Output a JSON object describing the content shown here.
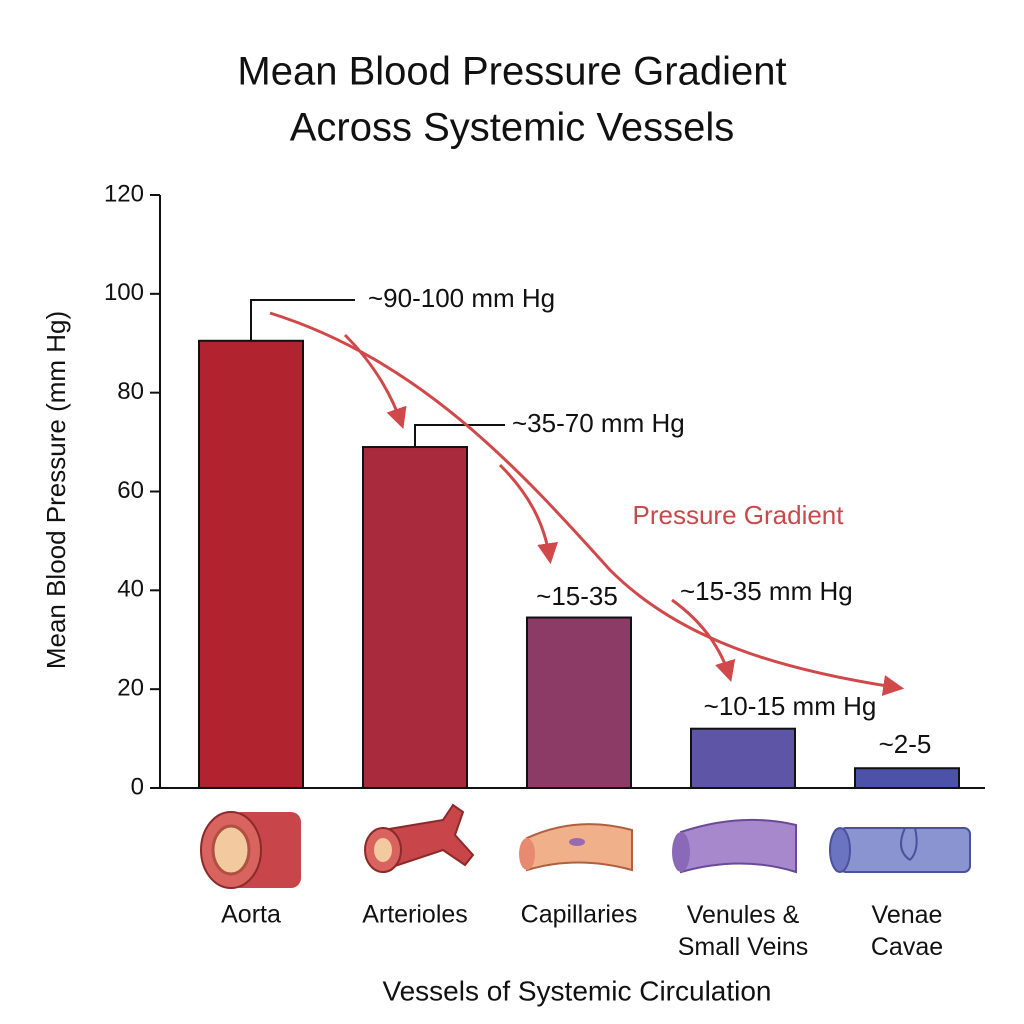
{
  "chart_data": {
    "type": "bar",
    "title": [
      "Mean Blood Pressure Gradient",
      "Across Systemic Vessels"
    ],
    "y_label": "Mean Blood Pressure (mm Hg)",
    "x_label": "Vessels of Systemic Circulation",
    "categories": [
      "Aorta",
      "Arterioles",
      "Capillaries",
      "Venules & Small Veins",
      "Venae Cavae"
    ],
    "values": [
      90.5,
      69,
      34.5,
      12,
      4
    ],
    "colors": [
      "#b0232f",
      "#a82a3c",
      "#8c3a66",
      "#5e55a6",
      "#4c52a8"
    ],
    "ylim": [
      0,
      120
    ],
    "yticks": [
      0,
      20,
      40,
      60,
      80,
      100,
      120
    ],
    "grid": false,
    "annotations": [
      "~90-100 mm Hg",
      "~35-70 mm Hg",
      "~15-35",
      "~15-35 mm Hg",
      "~10-15 mm Hg",
      "~2-5",
      "Pressure Gradient"
    ]
  }
}
